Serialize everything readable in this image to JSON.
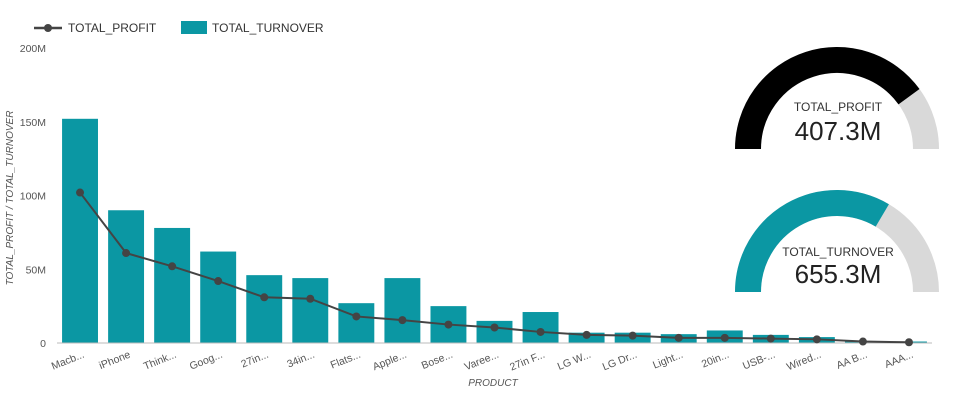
{
  "colors": {
    "bar": "#0b97a3",
    "line": "#444444",
    "gauge_profit": "#000000",
    "gauge_turnover": "#0b97a3",
    "gauge_track": "#d9d9d9",
    "grid": "#e6e6e6"
  },
  "legend": {
    "profit_label": "TOTAL_PROFIT",
    "turnover_label": "TOTAL_TURNOVER"
  },
  "chart_data": [
    {
      "type": "bar",
      "combo_line_series": "TOTAL_PROFIT",
      "xlabel": "PRODUCT",
      "ylabel": "TOTAL_PROFIT / TOTAL_TURNOVER",
      "ylim": [
        0,
        200000000
      ],
      "yticks": [
        0,
        50000000,
        100000000,
        150000000,
        200000000
      ],
      "ytick_labels": [
        "0",
        "50M",
        "100M",
        "150M",
        "200M"
      ],
      "grid": false,
      "legend_position": "top-left",
      "categories": [
        "Macb...",
        "iPhone",
        "Think...",
        "Goog...",
        "27in...",
        "34in...",
        "Flats...",
        "Apple...",
        "Bose...",
        "Varee...",
        "27in F...",
        "LG W...",
        "LG Dr...",
        "Light...",
        "20in...",
        "USB-...",
        "Wired...",
        "AA B...",
        "AAA..."
      ],
      "series": [
        {
          "name": "TOTAL_TURNOVER",
          "kind": "bar",
          "values": [
            152000000,
            90000000,
            78000000,
            62000000,
            46000000,
            44000000,
            27000000,
            44000000,
            25000000,
            15000000,
            21000000,
            7000000,
            7000000,
            6000000,
            8500000,
            5500000,
            4000000,
            1000000,
            1000000
          ]
        },
        {
          "name": "TOTAL_PROFIT",
          "kind": "line",
          "values": [
            102000000,
            61000000,
            52000000,
            42000000,
            31000000,
            30000000,
            18000000,
            15500000,
            12500000,
            10500000,
            7500000,
            5500000,
            5000000,
            3500000,
            3500000,
            3000000,
            2500000,
            1000000,
            500000
          ]
        }
      ]
    },
    {
      "type": "gauge",
      "label": "TOTAL_PROFIT",
      "value_text": "407.3M",
      "fill_fraction": 0.8
    },
    {
      "type": "gauge",
      "label": "TOTAL_TURNOVER",
      "value_text": "655.3M",
      "fill_fraction": 0.67
    }
  ]
}
